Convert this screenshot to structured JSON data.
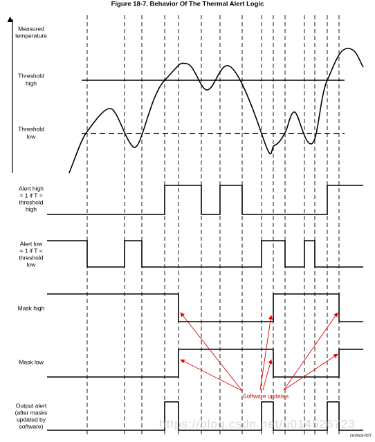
{
  "title": "Figure 18-7. Behavior Of The Thermal Alert Logic",
  "labels": {
    "measured_temperature": [
      "Measured",
      "temperature"
    ],
    "threshold_high": [
      "Threshold",
      "high"
    ],
    "threshold_low": [
      "Threshold",
      "low"
    ],
    "alert_high": [
      "Alert high",
      "= 1 if T >",
      "threshold",
      "high"
    ],
    "alert_low": [
      "Alert low",
      "= 1 if T <",
      "threshold",
      "low"
    ],
    "mask_high": "Mask high",
    "mask_low": "Mask low",
    "output_alert": [
      "Output alert",
      "(after masks",
      "updated by",
      "software)"
    ]
  },
  "annotation": "Software updates",
  "figure_id": "cnmsol-007",
  "watermark": "https://blog.csdn.net/u014526723"
}
